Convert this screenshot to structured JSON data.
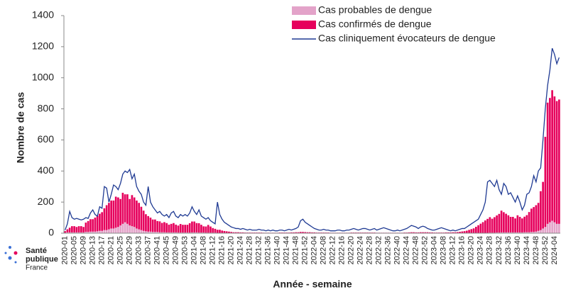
{
  "chart_data": {
    "type": "bar",
    "y_label": "Nombre de cas",
    "x_label": "Année - semaine",
    "ylim": [
      0,
      1400
    ],
    "yticks": [
      0,
      200,
      400,
      600,
      800,
      1000,
      1200,
      1400
    ],
    "grid": false,
    "legend": "top-right",
    "categories": [
      "2020-01",
      null,
      null,
      null,
      "2020-05",
      null,
      null,
      null,
      "2020-09",
      null,
      null,
      null,
      "2020-13",
      null,
      null,
      null,
      "2020-17",
      null,
      null,
      null,
      "2020-21",
      null,
      null,
      null,
      "2020-25",
      null,
      null,
      null,
      "2020-29",
      null,
      null,
      null,
      "2020-33",
      null,
      null,
      null,
      "2020-37",
      null,
      null,
      null,
      "2020-41",
      null,
      null,
      null,
      "2020-45",
      null,
      null,
      null,
      "2020-49",
      null,
      null,
      null,
      "2020-53",
      null,
      null,
      null,
      "2021-04",
      null,
      null,
      null,
      "2021-08",
      null,
      null,
      null,
      "2021-12",
      null,
      null,
      null,
      "2021-16",
      null,
      null,
      null,
      "2021-20",
      null,
      null,
      null,
      "2021-24",
      null,
      null,
      null,
      "2021-28",
      null,
      null,
      null,
      "2021-32",
      null,
      null,
      null,
      "2021-36",
      null,
      null,
      null,
      "2021-40",
      null,
      null,
      null,
      "2021-44",
      null,
      null,
      null,
      "2021-48",
      null,
      null,
      null,
      "2021-52",
      null,
      null,
      null,
      "2022-04",
      null,
      null,
      null,
      "2022-08",
      null,
      null,
      null,
      "2022-12",
      null,
      null,
      null,
      "2022-16",
      null,
      null,
      null,
      "2022-20",
      null,
      null,
      null,
      "2022-24",
      null,
      null,
      null,
      "2022-28",
      null,
      null,
      null,
      "2022-32",
      null,
      null,
      null,
      "2022-36",
      null,
      null,
      null,
      "2022-40",
      null,
      null,
      null,
      "2022-44",
      null,
      null,
      null,
      "2022-48",
      null,
      null,
      null,
      "2022-52",
      null,
      null,
      null,
      "2023-04",
      null,
      null,
      null,
      "2023-08",
      null,
      null,
      null,
      "2023-12",
      null,
      null,
      null,
      "2023-16",
      null,
      null,
      null,
      "2023-20",
      null,
      null,
      null,
      "2023-24",
      null,
      null,
      null,
      "2023-28",
      null,
      null,
      null,
      "2023-32",
      null,
      null,
      null,
      "2023-36",
      null,
      null,
      null,
      "2023-40",
      null,
      null,
      null,
      "2023-44",
      null,
      null,
      null,
      "2023-48",
      null,
      null,
      null,
      "2023-52",
      null,
      null,
      null,
      "2024-04",
      null,
      null
    ],
    "series": [
      {
        "name": "Cas probables de dengue",
        "color": "#e3a3c9",
        "stack": true,
        "values": [
          3,
          5,
          5,
          5,
          5,
          5,
          5,
          5,
          5,
          8,
          8,
          10,
          10,
          10,
          12,
          15,
          15,
          20,
          20,
          25,
          30,
          30,
          35,
          40,
          50,
          60,
          70,
          60,
          50,
          45,
          40,
          30,
          25,
          20,
          15,
          12,
          10,
          10,
          8,
          8,
          8,
          6,
          6,
          6,
          5,
          5,
          5,
          5,
          5,
          4,
          4,
          4,
          4,
          4,
          4,
          5,
          5,
          5,
          4,
          4,
          4,
          3,
          3,
          3,
          3,
          3,
          2,
          2,
          2,
          2,
          2,
          2,
          2,
          1,
          1,
          1,
          1,
          1,
          1,
          1,
          1,
          1,
          1,
          1,
          1,
          1,
          1,
          1,
          1,
          1,
          1,
          1,
          1,
          1,
          1,
          1,
          1,
          1,
          1,
          1,
          1,
          1,
          2,
          2,
          2,
          1,
          1,
          1,
          1,
          1,
          1,
          1,
          1,
          1,
          1,
          1,
          1,
          1,
          1,
          1,
          1,
          1,
          1,
          1,
          1,
          1,
          1,
          1,
          1,
          1,
          1,
          1,
          1,
          1,
          1,
          1,
          1,
          1,
          1,
          1,
          1,
          1,
          1,
          1,
          1,
          1,
          1,
          1,
          1,
          1,
          1,
          1,
          1,
          1,
          1,
          1,
          1,
          1,
          1,
          1,
          1,
          1,
          1,
          1,
          1,
          1,
          1,
          1,
          1,
          1,
          1,
          1,
          1,
          1,
          1,
          1,
          1,
          1,
          1,
          1,
          1,
          1,
          2,
          2,
          3,
          3,
          3,
          4,
          4,
          5,
          5,
          5,
          5,
          5,
          5,
          5,
          5,
          5,
          5,
          6,
          6,
          6,
          8,
          8,
          10,
          15,
          20,
          30,
          40,
          60,
          70,
          80,
          70,
          60,
          60
        ]
      },
      {
        "name": "Cas confirmés de dengue",
        "color": "#e6005c",
        "stack": true,
        "values": [
          10,
          20,
          30,
          40,
          40,
          35,
          40,
          40,
          35,
          60,
          70,
          80,
          80,
          90,
          100,
          110,
          120,
          140,
          160,
          170,
          180,
          180,
          200,
          190,
          170,
          200,
          180,
          190,
          170,
          200,
          190,
          180,
          170,
          150,
          130,
          110,
          100,
          90,
          80,
          80,
          70,
          70,
          60,
          65,
          60,
          50,
          55,
          60,
          50,
          45,
          55,
          50,
          50,
          50,
          60,
          70,
          70,
          60,
          60,
          50,
          40,
          40,
          50,
          40,
          30,
          25,
          20,
          20,
          15,
          12,
          10,
          8,
          6,
          5,
          5,
          5,
          4,
          4,
          3,
          3,
          3,
          3,
          3,
          3,
          3,
          3,
          2,
          2,
          2,
          2,
          2,
          2,
          2,
          3,
          3,
          3,
          3,
          3,
          4,
          4,
          5,
          5,
          6,
          6,
          5,
          5,
          5,
          4,
          4,
          3,
          3,
          3,
          3,
          3,
          3,
          2,
          2,
          2,
          2,
          2,
          2,
          2,
          2,
          2,
          3,
          3,
          3,
          3,
          3,
          3,
          3,
          3,
          3,
          3,
          3,
          2,
          2,
          2,
          2,
          2,
          2,
          2,
          2,
          2,
          2,
          2,
          2,
          3,
          3,
          4,
          5,
          5,
          4,
          4,
          5,
          5,
          5,
          5,
          4,
          4,
          3,
          3,
          3,
          3,
          3,
          4,
          4,
          4,
          5,
          5,
          6,
          8,
          10,
          12,
          15,
          20,
          25,
          30,
          40,
          50,
          60,
          70,
          80,
          90,
          100,
          90,
          100,
          110,
          120,
          140,
          130,
          120,
          110,
          100,
          100,
          90,
          110,
          100,
          90,
          100,
          110,
          130,
          150,
          160,
          170,
          180,
          250,
          300,
          580,
          780,
          800,
          840,
          810,
          790,
          800
        ]
      },
      {
        "name": "Cas cliniquement évocateurs de dengue",
        "color": "#1f3a93",
        "kind": "line",
        "values": [
          20,
          60,
          140,
          100,
          90,
          95,
          90,
          85,
          90,
          100,
          95,
          130,
          150,
          120,
          110,
          170,
          160,
          300,
          290,
          200,
          250,
          310,
          300,
          280,
          320,
          380,
          400,
          390,
          410,
          350,
          380,
          300,
          270,
          250,
          200,
          180,
          300,
          200,
          170,
          150,
          130,
          140,
          120,
          110,
          120,
          100,
          130,
          140,
          110,
          100,
          120,
          110,
          120,
          110,
          130,
          170,
          140,
          120,
          150,
          110,
          100,
          90,
          100,
          80,
          70,
          60,
          200,
          120,
          90,
          70,
          60,
          50,
          40,
          35,
          30,
          30,
          25,
          30,
          25,
          20,
          25,
          20,
          20,
          20,
          25,
          20,
          20,
          15,
          20,
          15,
          20,
          15,
          15,
          20,
          20,
          15,
          20,
          25,
          20,
          25,
          30,
          40,
          80,
          90,
          70,
          60,
          50,
          40,
          30,
          25,
          20,
          20,
          25,
          20,
          20,
          15,
          15,
          15,
          20,
          20,
          15,
          15,
          20,
          20,
          25,
          30,
          25,
          20,
          25,
          30,
          30,
          25,
          20,
          25,
          30,
          20,
          25,
          30,
          35,
          30,
          25,
          20,
          15,
          15,
          20,
          15,
          20,
          25,
          30,
          40,
          50,
          45,
          40,
          30,
          40,
          45,
          40,
          30,
          25,
          20,
          20,
          25,
          30,
          35,
          30,
          25,
          20,
          15,
          20,
          15,
          20,
          25,
          30,
          30,
          40,
          50,
          60,
          70,
          80,
          90,
          120,
          150,
          200,
          330,
          340,
          320,
          300,
          340,
          280,
          250,
          320,
          300,
          250,
          260,
          230,
          200,
          240,
          200,
          150,
          180,
          250,
          260,
          300,
          370,
          330,
          400,
          420,
          600,
          800,
          950,
          1050,
          1190,
          1150,
          1090,
          1130
        ]
      }
    ]
  },
  "logo": {
    "line1": "Santé",
    "line2": "publique",
    "line3": "France"
  }
}
